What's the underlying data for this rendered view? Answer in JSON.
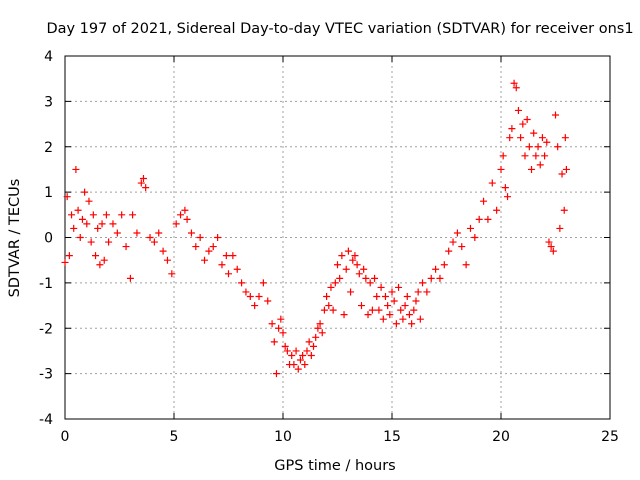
{
  "chart_data": {
    "type": "scatter",
    "title": "Day 197 of 2021, Sidereal Day-to-day VTEC variation (SDTVAR) for receiver ons1",
    "xlabel": "GPS time / hours",
    "ylabel": "SDTVAR / TECUs",
    "xlim": [
      0,
      25
    ],
    "ylim": [
      -4,
      4
    ],
    "xticks": [
      "0",
      "5",
      "10",
      "15",
      "20",
      "25"
    ],
    "yticks": [
      "4",
      "3",
      "2",
      "1",
      "0",
      "-1",
      "-2",
      "-3",
      "-4"
    ],
    "marker": "+",
    "grid": true,
    "series": [
      {
        "name": "SDTVAR",
        "color": "#ff0000",
        "points": [
          [
            0.0,
            -0.55
          ],
          [
            0.1,
            0.9
          ],
          [
            0.2,
            -0.4
          ],
          [
            0.3,
            0.5
          ],
          [
            0.4,
            0.2
          ],
          [
            0.5,
            1.5
          ],
          [
            0.6,
            0.6
          ],
          [
            0.7,
            0.0
          ],
          [
            0.8,
            0.4
          ],
          [
            0.9,
            1.0
          ],
          [
            1.0,
            0.3
          ],
          [
            1.1,
            0.8
          ],
          [
            1.2,
            -0.1
          ],
          [
            1.3,
            0.5
          ],
          [
            1.4,
            -0.4
          ],
          [
            1.5,
            0.2
          ],
          [
            1.6,
            -0.6
          ],
          [
            1.7,
            0.3
          ],
          [
            1.8,
            -0.5
          ],
          [
            1.9,
            0.5
          ],
          [
            2.0,
            -0.1
          ],
          [
            2.2,
            0.3
          ],
          [
            2.4,
            0.1
          ],
          [
            2.6,
            0.5
          ],
          [
            2.8,
            -0.2
          ],
          [
            3.0,
            -0.9
          ],
          [
            3.1,
            0.5
          ],
          [
            3.3,
            0.1
          ],
          [
            3.5,
            1.2
          ],
          [
            3.6,
            1.3
          ],
          [
            3.7,
            1.1
          ],
          [
            3.9,
            0.0
          ],
          [
            4.1,
            -0.1
          ],
          [
            4.3,
            0.1
          ],
          [
            4.5,
            -0.3
          ],
          [
            4.7,
            -0.5
          ],
          [
            4.9,
            -0.8
          ],
          [
            5.1,
            0.3
          ],
          [
            5.3,
            0.5
          ],
          [
            5.5,
            0.6
          ],
          [
            5.6,
            0.4
          ],
          [
            5.8,
            0.1
          ],
          [
            6.0,
            -0.2
          ],
          [
            6.2,
            0.0
          ],
          [
            6.4,
            -0.5
          ],
          [
            6.6,
            -0.3
          ],
          [
            6.8,
            -0.2
          ],
          [
            7.0,
            0.0
          ],
          [
            7.2,
            -0.6
          ],
          [
            7.4,
            -0.4
          ],
          [
            7.5,
            -0.8
          ],
          [
            7.7,
            -0.4
          ],
          [
            7.9,
            -0.7
          ],
          [
            8.1,
            -1.0
          ],
          [
            8.3,
            -1.2
          ],
          [
            8.5,
            -1.3
          ],
          [
            8.7,
            -1.5
          ],
          [
            8.9,
            -1.3
          ],
          [
            9.1,
            -1.0
          ],
          [
            9.3,
            -1.4
          ],
          [
            9.5,
            -1.9
          ],
          [
            9.6,
            -2.3
          ],
          [
            9.7,
            -3.0
          ],
          [
            9.8,
            -2.0
          ],
          [
            9.9,
            -1.8
          ],
          [
            10.0,
            -2.1
          ],
          [
            10.1,
            -2.4
          ],
          [
            10.2,
            -2.5
          ],
          [
            10.3,
            -2.8
          ],
          [
            10.4,
            -2.6
          ],
          [
            10.5,
            -2.8
          ],
          [
            10.6,
            -2.5
          ],
          [
            10.7,
            -2.9
          ],
          [
            10.8,
            -2.7
          ],
          [
            10.9,
            -2.6
          ],
          [
            11.0,
            -2.8
          ],
          [
            11.1,
            -2.5
          ],
          [
            11.2,
            -2.3
          ],
          [
            11.3,
            -2.6
          ],
          [
            11.4,
            -2.4
          ],
          [
            11.5,
            -2.2
          ],
          [
            11.6,
            -2.0
          ],
          [
            11.7,
            -1.9
          ],
          [
            11.8,
            -2.1
          ],
          [
            11.9,
            -1.6
          ],
          [
            12.0,
            -1.3
          ],
          [
            12.1,
            -1.5
          ],
          [
            12.2,
            -1.1
          ],
          [
            12.3,
            -1.6
          ],
          [
            12.4,
            -1.0
          ],
          [
            12.5,
            -0.6
          ],
          [
            12.6,
            -0.9
          ],
          [
            12.7,
            -0.4
          ],
          [
            12.8,
            -1.7
          ],
          [
            12.9,
            -0.7
          ],
          [
            13.0,
            -0.3
          ],
          [
            13.1,
            -1.2
          ],
          [
            13.2,
            -0.5
          ],
          [
            13.3,
            -0.4
          ],
          [
            13.4,
            -0.6
          ],
          [
            13.5,
            -0.8
          ],
          [
            13.6,
            -1.5
          ],
          [
            13.7,
            -0.7
          ],
          [
            13.8,
            -0.9
          ],
          [
            13.9,
            -1.7
          ],
          [
            14.0,
            -1.0
          ],
          [
            14.1,
            -1.6
          ],
          [
            14.2,
            -0.9
          ],
          [
            14.3,
            -1.3
          ],
          [
            14.4,
            -1.6
          ],
          [
            14.5,
            -1.1
          ],
          [
            14.6,
            -1.8
          ],
          [
            14.7,
            -1.3
          ],
          [
            14.8,
            -1.5
          ],
          [
            14.9,
            -1.7
          ],
          [
            15.0,
            -1.2
          ],
          [
            15.1,
            -1.4
          ],
          [
            15.2,
            -1.9
          ],
          [
            15.3,
            -1.1
          ],
          [
            15.4,
            -1.6
          ],
          [
            15.5,
            -1.8
          ],
          [
            15.6,
            -1.5
          ],
          [
            15.7,
            -1.3
          ],
          [
            15.8,
            -1.7
          ],
          [
            15.9,
            -1.9
          ],
          [
            16.0,
            -1.6
          ],
          [
            16.1,
            -1.4
          ],
          [
            16.2,
            -1.2
          ],
          [
            16.3,
            -1.8
          ],
          [
            16.4,
            -1.0
          ],
          [
            16.6,
            -1.2
          ],
          [
            16.8,
            -0.9
          ],
          [
            17.0,
            -0.7
          ],
          [
            17.2,
            -0.9
          ],
          [
            17.4,
            -0.6
          ],
          [
            17.6,
            -0.3
          ],
          [
            17.8,
            -0.1
          ],
          [
            18.0,
            0.1
          ],
          [
            18.2,
            -0.2
          ],
          [
            18.4,
            -0.6
          ],
          [
            18.6,
            0.2
          ],
          [
            18.8,
            0.0
          ],
          [
            19.0,
            0.4
          ],
          [
            19.2,
            0.8
          ],
          [
            19.4,
            0.4
          ],
          [
            19.6,
            1.2
          ],
          [
            19.8,
            0.6
          ],
          [
            20.0,
            1.5
          ],
          [
            20.1,
            1.8
          ],
          [
            20.2,
            1.1
          ],
          [
            20.3,
            0.9
          ],
          [
            20.4,
            2.2
          ],
          [
            20.5,
            2.4
          ],
          [
            20.6,
            3.4
          ],
          [
            20.7,
            3.3
          ],
          [
            20.8,
            2.8
          ],
          [
            20.9,
            2.2
          ],
          [
            21.0,
            2.5
          ],
          [
            21.1,
            1.8
          ],
          [
            21.2,
            2.6
          ],
          [
            21.3,
            2.0
          ],
          [
            21.4,
            1.5
          ],
          [
            21.5,
            2.3
          ],
          [
            21.6,
            1.8
          ],
          [
            21.7,
            2.0
          ],
          [
            21.8,
            1.6
          ],
          [
            21.9,
            2.2
          ],
          [
            22.0,
            1.8
          ],
          [
            22.1,
            2.1
          ],
          [
            22.2,
            -0.1
          ],
          [
            22.3,
            -0.2
          ],
          [
            22.4,
            -0.3
          ],
          [
            22.5,
            2.7
          ],
          [
            22.6,
            2.0
          ],
          [
            22.7,
            0.2
          ],
          [
            22.8,
            1.4
          ],
          [
            22.9,
            0.6
          ],
          [
            22.95,
            2.2
          ],
          [
            23.0,
            1.5
          ]
        ]
      }
    ]
  }
}
